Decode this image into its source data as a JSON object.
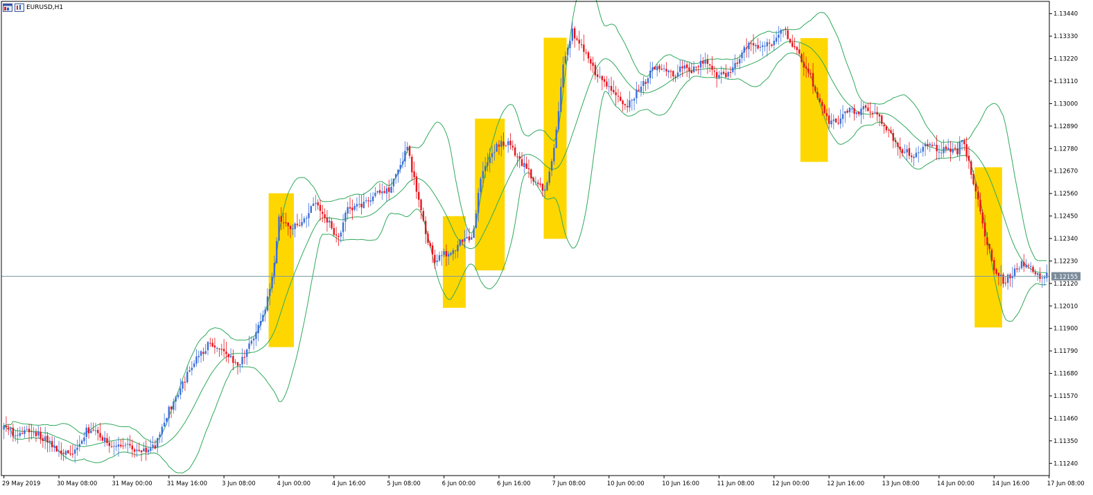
{
  "window": {
    "title": "EURUSD,H1"
  },
  "icons": {
    "chart_icon": "chart-window-icon",
    "terminal_icon": "terminal-icon"
  },
  "colors": {
    "background": "#ffffff",
    "axis": "#000000",
    "bull": "#3b6fd8",
    "bear": "#e8121b",
    "band": "#2ea85a",
    "highlight": "#ffd700",
    "price_line": "#7a9aa8",
    "price_tag": "#7a8a99"
  },
  "chart_data": {
    "type": "candlestick",
    "symbol": "EURUSD",
    "timeframe": "H1",
    "current_price": 1.12155,
    "current_price_label": "1.12155",
    "ylim": [
      1.1118,
      1.135
    ],
    "y_ticks": [
      1.1344,
      1.1333,
      1.1322,
      1.1311,
      1.13,
      1.1289,
      1.1278,
      1.1267,
      1.1256,
      1.1245,
      1.1234,
      1.1223,
      1.1212,
      1.1201,
      1.119,
      1.1179,
      1.1168,
      1.1157,
      1.1146,
      1.1135,
      1.1124
    ],
    "y_tick_labels": [
      "1.13440",
      "1.13330",
      "1.13220",
      "1.13110",
      "1.13000",
      "1.12890",
      "1.12780",
      "1.12670",
      "1.12560",
      "1.12450",
      "1.12340",
      "1.12230",
      "1.12120",
      "1.12010",
      "1.11900",
      "1.11790",
      "1.11680",
      "1.11570",
      "1.11460",
      "1.11350",
      "1.11240"
    ],
    "x_tick_labels": [
      "29 May 2019",
      "30 May 08:00",
      "31 May 00:00",
      "31 May 16:00",
      "3 Jun 08:00",
      "4 Jun 00:00",
      "4 Jun 16:00",
      "5 Jun 08:00",
      "6 Jun 00:00",
      "6 Jun 16:00",
      "7 Jun 08:00",
      "10 Jun 00:00",
      "10 Jun 16:00",
      "11 Jun 08:00",
      "12 Jun 00:00",
      "12 Jun 16:00",
      "13 Jun 08:00",
      "14 Jun 00:00",
      "14 Jun 16:00",
      "17 Jun 08:00"
    ],
    "close_path": [
      [
        0,
        1.1142
      ],
      [
        6,
        1.1137
      ],
      [
        12,
        1.114
      ],
      [
        18,
        1.1136
      ],
      [
        24,
        1.113
      ],
      [
        30,
        1.1128
      ],
      [
        36,
        1.114
      ],
      [
        42,
        1.1138
      ],
      [
        48,
        1.1131
      ],
      [
        54,
        1.1133
      ],
      [
        60,
        1.1129
      ],
      [
        66,
        1.1132
      ],
      [
        72,
        1.115
      ],
      [
        78,
        1.1163
      ],
      [
        84,
        1.1175
      ],
      [
        90,
        1.1183
      ],
      [
        96,
        1.1178
      ],
      [
        102,
        1.1172
      ],
      [
        108,
        1.1183
      ],
      [
        114,
        1.1198
      ],
      [
        118,
        1.1222
      ],
      [
        120,
        1.1245
      ],
      [
        124,
        1.124
      ],
      [
        130,
        1.1241
      ],
      [
        136,
        1.1252
      ],
      [
        140,
        1.1245
      ],
      [
        146,
        1.1233
      ],
      [
        150,
        1.1249
      ],
      [
        156,
        1.125
      ],
      [
        162,
        1.1255
      ],
      [
        168,
        1.1258
      ],
      [
        172,
        1.1268
      ],
      [
        176,
        1.1278
      ],
      [
        180,
        1.1257
      ],
      [
        184,
        1.1237
      ],
      [
        188,
        1.1223
      ],
      [
        192,
        1.1226
      ],
      [
        196,
        1.1229
      ],
      [
        200,
        1.1233
      ],
      [
        204,
        1.1233
      ],
      [
        208,
        1.1262
      ],
      [
        212,
        1.1275
      ],
      [
        216,
        1.128
      ],
      [
        220,
        1.1281
      ],
      [
        224,
        1.1274
      ],
      [
        228,
        1.1268
      ],
      [
        232,
        1.1262
      ],
      [
        236,
        1.1258
      ],
      [
        240,
        1.1278
      ],
      [
        244,
        1.1318
      ],
      [
        248,
        1.1335
      ],
      [
        252,
        1.1329
      ],
      [
        256,
        1.1318
      ],
      [
        260,
        1.1313
      ],
      [
        264,
        1.1309
      ],
      [
        268,
        1.1304
      ],
      [
        272,
        1.1298
      ],
      [
        276,
        1.1306
      ],
      [
        280,
        1.1311
      ],
      [
        284,
        1.1318
      ],
      [
        288,
        1.1318
      ],
      [
        292,
        1.1313
      ],
      [
        296,
        1.1318
      ],
      [
        300,
        1.1316
      ],
      [
        304,
        1.1321
      ],
      [
        308,
        1.1318
      ],
      [
        312,
        1.1313
      ],
      [
        316,
        1.1315
      ],
      [
        320,
        1.1321
      ],
      [
        324,
        1.1328
      ],
      [
        328,
        1.1328
      ],
      [
        332,
        1.1328
      ],
      [
        336,
        1.133
      ],
      [
        340,
        1.1337
      ],
      [
        344,
        1.1329
      ],
      [
        348,
        1.1321
      ],
      [
        352,
        1.1313
      ],
      [
        356,
        1.13
      ],
      [
        360,
        1.129
      ],
      [
        364,
        1.1291
      ],
      [
        368,
        1.1297
      ],
      [
        372,
        1.1296
      ],
      [
        376,
        1.1298
      ],
      [
        380,
        1.1296
      ],
      [
        384,
        1.129
      ],
      [
        388,
        1.1283
      ],
      [
        392,
        1.1277
      ],
      [
        396,
        1.1275
      ],
      [
        400,
        1.1277
      ],
      [
        404,
        1.1282
      ],
      [
        408,
        1.1277
      ],
      [
        412,
        1.1277
      ],
      [
        416,
        1.1276
      ],
      [
        418,
        1.1283
      ],
      [
        420,
        1.1275
      ],
      [
        424,
        1.1257
      ],
      [
        428,
        1.1235
      ],
      [
        432,
        1.122
      ],
      [
        436,
        1.1213
      ],
      [
        440,
        1.1217
      ],
      [
        444,
        1.1222
      ],
      [
        448,
        1.122
      ],
      [
        452,
        1.1215
      ],
      [
        454,
        1.1216
      ]
    ],
    "highlight_windows": [
      [
        116,
        126
      ],
      [
        192,
        201
      ],
      [
        206,
        218
      ],
      [
        236,
        245
      ],
      [
        348,
        359
      ],
      [
        424,
        435
      ]
    ]
  }
}
